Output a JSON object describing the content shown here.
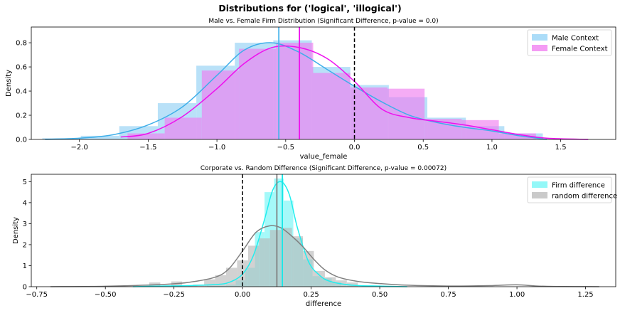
{
  "figure": {
    "suptitle": "Distributions for ('logical', 'illogical')"
  },
  "chart_data": [
    {
      "type": "histogram",
      "title": "Male vs. Female Firm Distribution (Significant Difference, p-value = 0.0)",
      "xlabel": "value_female",
      "ylabel": "Density",
      "xlim": [
        -2.35,
        1.9
      ],
      "ylim": [
        0,
        0.93
      ],
      "xticks": [
        -2.0,
        -1.5,
        -1.0,
        -0.5,
        0.0,
        0.5,
        1.0,
        1.5
      ],
      "xtick_labels": [
        "−2.0",
        "−1.5",
        "−1.0",
        "−0.5",
        "0.0",
        "0.5",
        "1.0",
        "1.5"
      ],
      "yticks": [
        0.0,
        0.2,
        0.4,
        0.6,
        0.8
      ],
      "ytick_labels": [
        "0.0",
        "0.2",
        "0.4",
        "0.6",
        "0.8"
      ],
      "legend_position": "top-right",
      "series": [
        {
          "name": "Male Context",
          "color": "#3daee9",
          "bin_edges": [
            -2.27,
            -1.99,
            -1.71,
            -1.43,
            -1.15,
            -0.87,
            -0.59,
            -0.31,
            -0.03,
            0.25,
            0.53,
            0.81,
            1.09,
            1.37
          ],
          "densities": [
            0.01,
            0.03,
            0.11,
            0.3,
            0.61,
            0.8,
            0.82,
            0.6,
            0.45,
            0.35,
            0.18,
            0.11,
            0.05
          ],
          "kde_x": [
            -2.25,
            -2.0,
            -1.75,
            -1.5,
            -1.25,
            -1.0,
            -0.8,
            -0.6,
            -0.4,
            -0.2,
            0.0,
            0.2,
            0.4,
            0.6,
            0.8,
            1.0,
            1.2,
            1.4
          ],
          "kde_y": [
            0.0,
            0.01,
            0.04,
            0.12,
            0.27,
            0.53,
            0.74,
            0.8,
            0.72,
            0.58,
            0.44,
            0.31,
            0.2,
            0.14,
            0.1,
            0.07,
            0.03,
            0.0
          ],
          "mean_line": -0.55
        },
        {
          "name": "Female Context",
          "color": "#ee11ee",
          "bin_edges": [
            -1.65,
            -1.38,
            -1.11,
            -0.84,
            -0.57,
            -0.3,
            -0.03,
            0.24,
            0.51,
            0.78,
            1.05,
            1.32
          ],
          "densities": [
            0.05,
            0.18,
            0.57,
            0.75,
            0.8,
            0.55,
            0.43,
            0.42,
            0.17,
            0.16,
            0.05
          ],
          "kde_x": [
            -1.7,
            -1.5,
            -1.25,
            -1.0,
            -0.8,
            -0.6,
            -0.4,
            -0.2,
            0.0,
            0.2,
            0.4,
            0.6,
            0.8,
            1.0,
            1.2,
            1.4,
            1.7
          ],
          "kde_y": [
            0.02,
            0.05,
            0.19,
            0.42,
            0.63,
            0.76,
            0.76,
            0.67,
            0.48,
            0.25,
            0.18,
            0.15,
            0.12,
            0.08,
            0.04,
            0.01,
            0.0
          ],
          "mean_line": -0.4
        }
      ],
      "reference_line": 0.0
    },
    {
      "type": "histogram",
      "title": "Corporate vs. Random Difference (Significant Difference, p-value = 0.00072)",
      "xlabel": "difference",
      "ylabel": "Density",
      "xlim": [
        -0.77,
        1.36
      ],
      "ylim": [
        0,
        5.35
      ],
      "xticks": [
        -0.75,
        -0.5,
        -0.25,
        0.0,
        0.25,
        0.5,
        0.75,
        1.0,
        1.25
      ],
      "xtick_labels": [
        "−0.75",
        "−0.50",
        "−0.25",
        "0.00",
        "0.25",
        "0.50",
        "0.75",
        "1.00",
        "1.25"
      ],
      "yticks": [
        0,
        1,
        2,
        3,
        4,
        5
      ],
      "ytick_labels": [
        "0",
        "1",
        "2",
        "3",
        "4",
        "5"
      ],
      "legend_position": "top-right",
      "series": [
        {
          "name": "Firm difference",
          "color": "#22eeee",
          "bin_edges": [
            -0.34,
            -0.305,
            -0.27,
            -0.235,
            -0.2,
            -0.165,
            -0.13,
            -0.095,
            -0.06,
            -0.025,
            0.01,
            0.045,
            0.08,
            0.115,
            0.15,
            0.185,
            0.22,
            0.255,
            0.29,
            0.325,
            0.36,
            0.395,
            0.43,
            0.465,
            0.5,
            0.535
          ],
          "densities": [
            0.05,
            0.0,
            0.0,
            0.0,
            0.05,
            0.0,
            0.05,
            0.05,
            0.1,
            0.3,
            0.9,
            2.6,
            4.5,
            5.15,
            4.1,
            2.3,
            1.3,
            0.5,
            0.4,
            0.2,
            0.05,
            0.05,
            0.05,
            0.05,
            0.0
          ],
          "kde_x": [
            -0.4,
            -0.3,
            -0.2,
            -0.1,
            -0.05,
            0.0,
            0.04,
            0.08,
            0.11,
            0.14,
            0.17,
            0.2,
            0.24,
            0.28,
            0.32,
            0.4,
            0.5,
            0.6
          ],
          "kde_y": [
            0.0,
            0.03,
            0.05,
            0.1,
            0.2,
            0.6,
            1.5,
            3.2,
            4.6,
            5.0,
            4.4,
            2.8,
            1.2,
            0.55,
            0.25,
            0.07,
            0.03,
            0.0
          ],
          "mean_line": 0.145
        },
        {
          "name": "random difference",
          "color": "#aaaaaa",
          "bin_edges": [
            -0.34,
            -0.3,
            -0.26,
            -0.22,
            -0.18,
            -0.14,
            -0.1,
            -0.06,
            -0.02,
            0.02,
            0.06,
            0.1,
            0.14,
            0.18,
            0.22,
            0.26,
            0.3,
            0.34,
            0.38,
            0.42
          ],
          "densities": [
            0.2,
            0.0,
            0.25,
            0.05,
            0.1,
            0.35,
            0.55,
            0.9,
            1.25,
            1.95,
            2.3,
            2.7,
            2.8,
            2.4,
            1.7,
            0.75,
            0.45,
            0.3,
            0.2
          ],
          "kde_x": [
            -0.7,
            -0.5,
            -0.3,
            -0.2,
            -0.1,
            -0.05,
            0.0,
            0.05,
            0.1,
            0.14,
            0.18,
            0.22,
            0.26,
            0.3,
            0.35,
            0.42,
            0.5,
            0.6,
            0.75,
            0.9,
            1.0,
            1.1,
            1.3
          ],
          "kde_y": [
            0.0,
            0.02,
            0.1,
            0.2,
            0.45,
            0.85,
            1.7,
            2.6,
            2.9,
            2.8,
            2.4,
            1.9,
            1.3,
            0.8,
            0.45,
            0.25,
            0.15,
            0.07,
            0.03,
            0.05,
            0.09,
            0.02,
            0.0
          ],
          "mean_line": 0.125
        }
      ],
      "reference_line": 0.0
    }
  ]
}
